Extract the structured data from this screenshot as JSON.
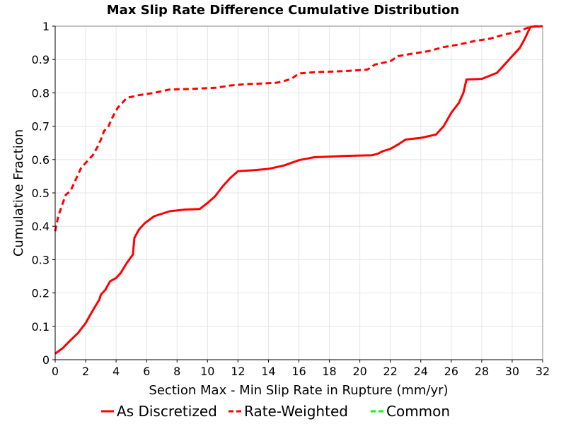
{
  "chart_data": {
    "type": "line",
    "title": "Max Slip Rate Difference Cumulative Distribution",
    "xlabel": "Section Max - Min Slip Rate in Rupture (mm/yr)",
    "ylabel": "Cumulative Fraction",
    "xlim": [
      0,
      32
    ],
    "ylim": [
      0,
      1
    ],
    "x_ticks": [
      0,
      2,
      4,
      6,
      8,
      10,
      12,
      14,
      16,
      18,
      20,
      22,
      24,
      26,
      28,
      30,
      32
    ],
    "y_ticks": [
      0,
      0.1,
      0.2,
      0.3,
      0.4,
      0.5,
      0.6,
      0.7,
      0.8,
      0.9,
      1
    ],
    "grid": true,
    "legend_position": "bottom",
    "series": [
      {
        "name": "As Discretized",
        "color": "#ff0000",
        "dash": "solid",
        "points": [
          [
            0,
            0.018
          ],
          [
            0.5,
            0.035
          ],
          [
            1,
            0.058
          ],
          [
            1.5,
            0.08
          ],
          [
            2,
            0.11
          ],
          [
            2.5,
            0.15
          ],
          [
            2.9,
            0.18
          ],
          [
            3.0,
            0.195
          ],
          [
            3.3,
            0.21
          ],
          [
            3.6,
            0.235
          ],
          [
            4.0,
            0.245
          ],
          [
            4.3,
            0.26
          ],
          [
            4.7,
            0.29
          ],
          [
            5.1,
            0.315
          ],
          [
            5.2,
            0.365
          ],
          [
            5.5,
            0.39
          ],
          [
            5.9,
            0.41
          ],
          [
            6.5,
            0.43
          ],
          [
            7.5,
            0.445
          ],
          [
            8.5,
            0.45
          ],
          [
            9.5,
            0.452
          ],
          [
            10.0,
            0.47
          ],
          [
            10.5,
            0.49
          ],
          [
            11.0,
            0.52
          ],
          [
            11.5,
            0.545
          ],
          [
            12.0,
            0.565
          ],
          [
            13.0,
            0.568
          ],
          [
            14.0,
            0.572
          ],
          [
            15.0,
            0.582
          ],
          [
            16.0,
            0.598
          ],
          [
            17.0,
            0.607
          ],
          [
            18.0,
            0.609
          ],
          [
            19.0,
            0.611
          ],
          [
            20.0,
            0.612
          ],
          [
            20.8,
            0.613
          ],
          [
            21.2,
            0.618
          ],
          [
            21.5,
            0.625
          ],
          [
            22.0,
            0.632
          ],
          [
            22.5,
            0.645
          ],
          [
            23.0,
            0.66
          ],
          [
            24.0,
            0.665
          ],
          [
            25.0,
            0.675
          ],
          [
            25.5,
            0.7
          ],
          [
            26.0,
            0.74
          ],
          [
            26.5,
            0.77
          ],
          [
            26.8,
            0.8
          ],
          [
            27.0,
            0.84
          ],
          [
            28.0,
            0.842
          ],
          [
            29.0,
            0.86
          ],
          [
            29.5,
            0.885
          ],
          [
            30.0,
            0.91
          ],
          [
            30.5,
            0.935
          ],
          [
            30.8,
            0.96
          ],
          [
            31.2,
            0.998
          ],
          [
            32.0,
            1.0
          ]
        ]
      },
      {
        "name": "Rate-Weighted",
        "color": "#ff0000",
        "dash": "dashed",
        "points": [
          [
            0,
            0.385
          ],
          [
            0.2,
            0.43
          ],
          [
            0.5,
            0.47
          ],
          [
            0.7,
            0.495
          ],
          [
            1.0,
            0.505
          ],
          [
            1.3,
            0.535
          ],
          [
            1.7,
            0.575
          ],
          [
            2.0,
            0.59
          ],
          [
            2.5,
            0.615
          ],
          [
            2.8,
            0.64
          ],
          [
            3.0,
            0.66
          ],
          [
            3.2,
            0.685
          ],
          [
            3.5,
            0.7
          ],
          [
            3.8,
            0.73
          ],
          [
            4.1,
            0.755
          ],
          [
            4.4,
            0.77
          ],
          [
            4.7,
            0.785
          ],
          [
            5.5,
            0.793
          ],
          [
            6.5,
            0.8
          ],
          [
            7.5,
            0.81
          ],
          [
            9.0,
            0.812
          ],
          [
            10.5,
            0.815
          ],
          [
            11.5,
            0.822
          ],
          [
            12.5,
            0.826
          ],
          [
            13.5,
            0.828
          ],
          [
            14.5,
            0.83
          ],
          [
            15.0,
            0.835
          ],
          [
            15.5,
            0.842
          ],
          [
            16.0,
            0.858
          ],
          [
            17.0,
            0.862
          ],
          [
            19.0,
            0.865
          ],
          [
            20.5,
            0.87
          ],
          [
            21.0,
            0.885
          ],
          [
            22.0,
            0.895
          ],
          [
            22.5,
            0.91
          ],
          [
            23.5,
            0.918
          ],
          [
            24.5,
            0.925
          ],
          [
            25.5,
            0.937
          ],
          [
            26.5,
            0.945
          ],
          [
            27.5,
            0.955
          ],
          [
            28.5,
            0.962
          ],
          [
            29.5,
            0.975
          ],
          [
            30.5,
            0.985
          ],
          [
            31.0,
            0.995
          ],
          [
            31.5,
            1.0
          ],
          [
            32.0,
            1.0
          ]
        ]
      },
      {
        "name": "Common",
        "color": "#00ff00",
        "dash": "dashed",
        "points": []
      }
    ]
  }
}
